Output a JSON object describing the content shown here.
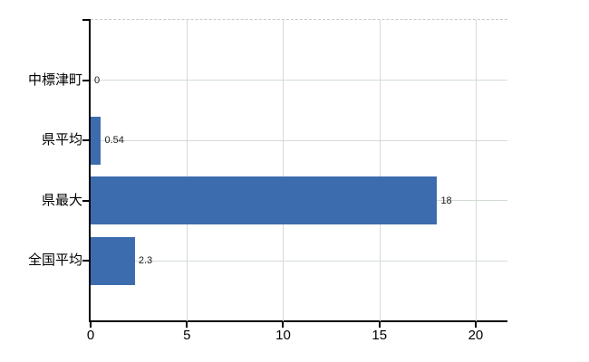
{
  "chart_data": {
    "type": "bar",
    "orientation": "horizontal",
    "title": "",
    "xlabel": "",
    "ylabel": "",
    "categories": [
      "中標津町",
      "県平均",
      "県最大",
      "全国平均"
    ],
    "values": [
      0,
      0.54,
      18,
      2.3
    ],
    "value_labels": [
      "0",
      "0.54",
      "18",
      "2.3"
    ],
    "xticks": [
      0,
      5,
      10,
      15,
      20
    ],
    "xtick_labels": [
      "0",
      "5",
      "10",
      "15",
      "20"
    ],
    "xlim": [
      0,
      21.65
    ],
    "grid": true,
    "legend": false,
    "colors": {
      "bar": "#3c6cae",
      "grid_h": "#d3dcd3",
      "grid_v": "#d9d7dc",
      "plot_top_border": "#c9c9c9",
      "axis": "#000000",
      "category_text": "#000000",
      "value_text": "#1a1a1a"
    }
  }
}
